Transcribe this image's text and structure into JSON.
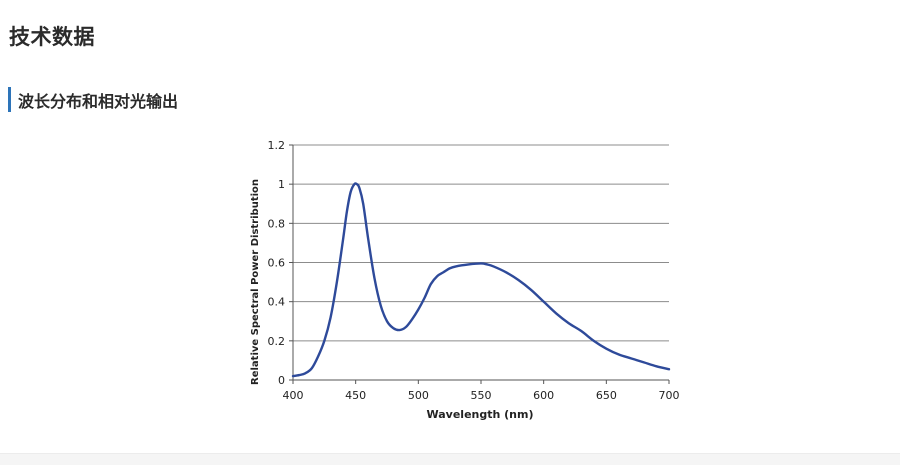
{
  "page": {
    "title": "技术数据",
    "section_title": "波长分布和相对光输出"
  },
  "colors": {
    "accent": "#2d74b9",
    "series": "#2e4a9a"
  },
  "chart_data": {
    "type": "line",
    "title": "",
    "xlabel": "Wavelength (nm)",
    "ylabel": "Relative Spectral Power Distribution",
    "xlim": [
      400,
      700
    ],
    "ylim": [
      0,
      1.2
    ],
    "x_ticks": [
      400,
      450,
      500,
      550,
      600,
      650,
      700
    ],
    "y_ticks": [
      0,
      0.2,
      0.4,
      0.6,
      0.8,
      1,
      1.2
    ],
    "x_tick_labels": [
      "400",
      "450",
      "500",
      "550",
      "600",
      "650",
      "700"
    ],
    "y_tick_labels": [
      "0",
      "0.2",
      "0.4",
      "0.6",
      "0.8",
      "1",
      "1.2"
    ],
    "grid": "horizontal",
    "legend": "none",
    "series": [
      {
        "name": "Relative Spectral Power",
        "x": [
          400,
          405,
          410,
          415,
          420,
          425,
          430,
          435,
          440,
          443,
          446,
          449,
          451,
          453,
          456,
          460,
          465,
          470,
          475,
          480,
          485,
          490,
          495,
          500,
          505,
          510,
          515,
          520,
          525,
          530,
          540,
          550,
          555,
          560,
          570,
          580,
          590,
          600,
          610,
          620,
          630,
          640,
          650,
          660,
          670,
          680,
          690,
          700
        ],
        "y": [
          0.02,
          0.025,
          0.035,
          0.06,
          0.12,
          0.2,
          0.32,
          0.5,
          0.72,
          0.86,
          0.96,
          1.0,
          1.0,
          0.98,
          0.9,
          0.72,
          0.52,
          0.38,
          0.3,
          0.265,
          0.255,
          0.27,
          0.31,
          0.36,
          0.42,
          0.49,
          0.53,
          0.55,
          0.57,
          0.58,
          0.59,
          0.595,
          0.59,
          0.58,
          0.55,
          0.51,
          0.46,
          0.4,
          0.34,
          0.29,
          0.25,
          0.2,
          0.16,
          0.13,
          0.11,
          0.09,
          0.07,
          0.055
        ]
      }
    ]
  }
}
